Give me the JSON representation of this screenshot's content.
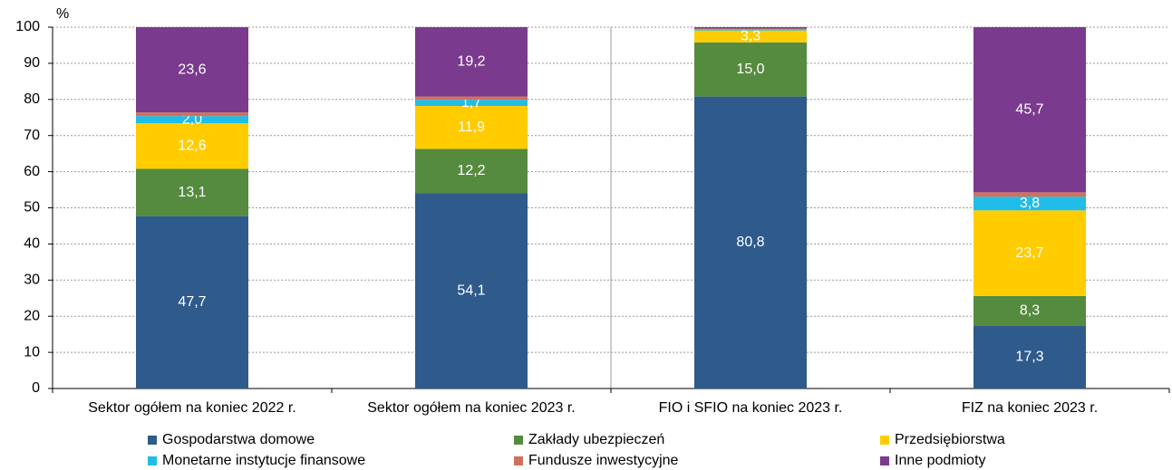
{
  "chart_data": {
    "type": "stacked_bar",
    "y_label": "%",
    "categories": [
      "Sektor ogółem na koniec 2022 r.",
      "Sektor ogółem na koniec 2023 r.",
      "FIO i SFIO na koniec 2023 r.",
      "FIZ na koniec 2023 r."
    ],
    "series": [
      {
        "name": "Gospodarstwa domowe",
        "color": "#2e5a8c",
        "values": [
          47.7,
          54.1,
          80.8,
          17.3
        ],
        "value_labels": [
          "47,7",
          "54,1",
          "80,8",
          "17,3"
        ]
      },
      {
        "name": "Zakłady ubezpieczeń",
        "color": "#558b3e",
        "values": [
          13.1,
          12.2,
          15.0,
          8.3
        ],
        "value_labels": [
          "13,1",
          "12,2",
          "15,0",
          "8,3"
        ]
      },
      {
        "name": "Przedsiębiorstwa",
        "color": "#ffcc00",
        "values": [
          12.6,
          11.9,
          3.3,
          23.7
        ],
        "value_labels": [
          "12,6",
          "11,9",
          "3,3",
          "23,7"
        ]
      },
      {
        "name": "Monetarne instytucje finansowe",
        "color": "#1fbde8",
        "values": [
          2.0,
          1.7,
          0.2,
          3.8
        ],
        "value_labels": [
          "2,0",
          "1,7",
          null,
          "3,8"
        ]
      },
      {
        "name": "Fundusze inwestycyjne",
        "color": "#d2705b",
        "values": [
          1.0,
          0.9,
          0.3,
          1.2
        ],
        "value_labels": [
          null,
          null,
          null,
          null
        ]
      },
      {
        "name": "Inne podmioty",
        "color": "#7a3a8e",
        "values": [
          23.6,
          19.2,
          0.4,
          45.7
        ],
        "value_labels": [
          "23,6",
          "19,2",
          null,
          "45,7"
        ]
      }
    ],
    "ylim": [
      0,
      100
    ],
    "yticks": [
      0,
      10,
      20,
      30,
      40,
      50,
      60,
      70,
      80,
      90,
      100
    ],
    "grid": true
  }
}
